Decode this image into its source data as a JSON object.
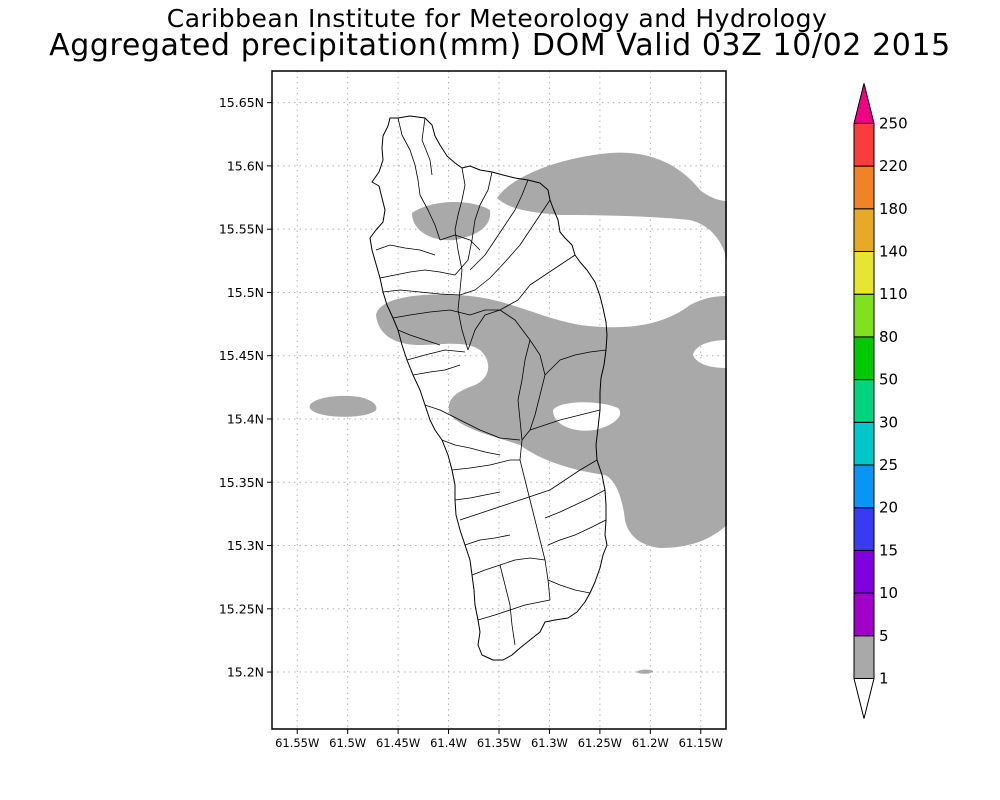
{
  "title": {
    "line1": "Caribbean Institute for Meteorology and Hydrology",
    "line2": "Aggregated precipitation(mm) DOM Valid 03Z 10/02 2015"
  },
  "map": {
    "lon_range": [
      -61.575,
      -61.125
    ],
    "lat_range": [
      15.155,
      15.675
    ],
    "lat_ticks": [
      {
        "value": 15.65,
        "label": "15.65N"
      },
      {
        "value": 15.6,
        "label": "15.6N"
      },
      {
        "value": 15.55,
        "label": "15.55N"
      },
      {
        "value": 15.5,
        "label": "15.5N"
      },
      {
        "value": 15.45,
        "label": "15.45N"
      },
      {
        "value": 15.4,
        "label": "15.4N"
      },
      {
        "value": 15.35,
        "label": "15.35N"
      },
      {
        "value": 15.3,
        "label": "15.3N"
      },
      {
        "value": 15.25,
        "label": "15.25N"
      },
      {
        "value": 15.2,
        "label": "15.2N"
      }
    ],
    "lon_ticks": [
      {
        "value": -61.55,
        "label": "61.55W"
      },
      {
        "value": -61.5,
        "label": "61.5W"
      },
      {
        "value": -61.45,
        "label": "61.45W"
      },
      {
        "value": -61.4,
        "label": "61.4W"
      },
      {
        "value": -61.35,
        "label": "61.35W"
      },
      {
        "value": -61.3,
        "label": "61.3W"
      },
      {
        "value": -61.25,
        "label": "61.25W"
      },
      {
        "value": -61.2,
        "label": "61.2W"
      },
      {
        "value": -61.15,
        "label": "61.15W"
      }
    ],
    "grid": true,
    "precip_color": "#a9a9a9"
  },
  "colorbar": {
    "placement": "right",
    "levels": [
      "1",
      "5",
      "10",
      "15",
      "20",
      "25",
      "30",
      "50",
      "80",
      "110",
      "140",
      "180",
      "220",
      "250"
    ],
    "bands": [
      {
        "color": "#ffffff"
      },
      {
        "color": "#a9a9a9"
      },
      {
        "color": "#a000c8"
      },
      {
        "color": "#8000e0"
      },
      {
        "color": "#3a3af5"
      },
      {
        "color": "#0896f5"
      },
      {
        "color": "#00c8c8"
      },
      {
        "color": "#00d27d"
      },
      {
        "color": "#00c800"
      },
      {
        "color": "#82e11e"
      },
      {
        "color": "#e6e632"
      },
      {
        "color": "#e6aa28"
      },
      {
        "color": "#f08228"
      },
      {
        "color": "#fa3c3c"
      },
      {
        "color": "#f00082"
      }
    ]
  }
}
